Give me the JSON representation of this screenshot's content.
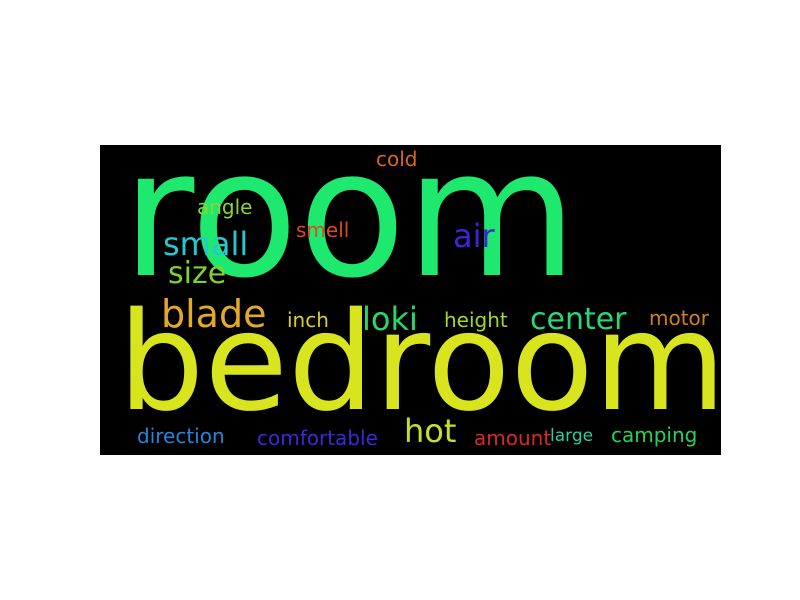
{
  "background": "#000000",
  "words": [
    {
      "text": "room",
      "color": "#1ee86d"
    },
    {
      "text": "bedroom",
      "color": "#d7e41e"
    },
    {
      "text": "cold",
      "color": "#d9671e"
    },
    {
      "text": "angle",
      "color": "#8dd62b"
    },
    {
      "text": "smell",
      "color": "#e0481c"
    },
    {
      "text": "air",
      "color": "#3b26d6"
    },
    {
      "text": "small",
      "color": "#25c9d2"
    },
    {
      "text": "size",
      "color": "#7ed42d"
    },
    {
      "text": "blade",
      "color": "#e5a92a"
    },
    {
      "text": "inch",
      "color": "#d8cf2a"
    },
    {
      "text": "loki",
      "color": "#27d86c"
    },
    {
      "text": "height",
      "color": "#9ed92c"
    },
    {
      "text": "center",
      "color": "#27d87a"
    },
    {
      "text": "motor",
      "color": "#d37f1e"
    },
    {
      "text": "hot",
      "color": "#c4e02a"
    },
    {
      "text": "direction",
      "color": "#2186db"
    },
    {
      "text": "comfortable",
      "color": "#3a28dd"
    },
    {
      "text": "amount",
      "color": "#de2727"
    },
    {
      "text": "large",
      "color": "#23d2a6"
    },
    {
      "text": "camping",
      "color": "#24d552"
    }
  ]
}
